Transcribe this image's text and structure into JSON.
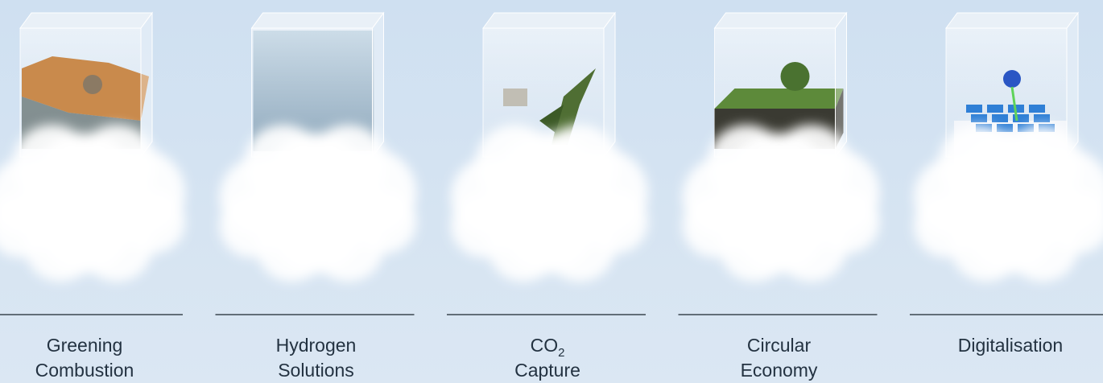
{
  "items": [
    {
      "lines": [
        "Greening",
        "Combustion"
      ]
    },
    {
      "lines": [
        "Hydrogen",
        "Solutions"
      ]
    },
    {
      "lines": [
        {
          "text": "CO",
          "sub": "2"
        },
        "Capture"
      ]
    },
    {
      "lines": [
        "Circular",
        "Economy"
      ]
    },
    {
      "lines": [
        "Digitalisation"
      ]
    }
  ]
}
